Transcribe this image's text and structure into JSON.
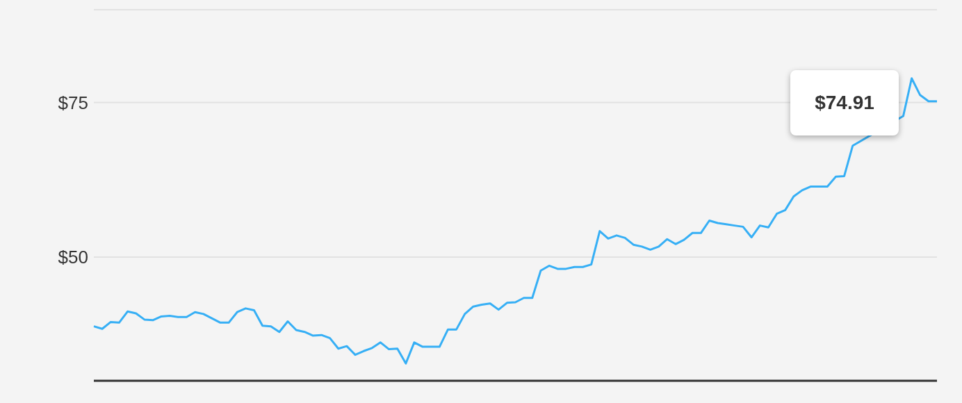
{
  "chart_data": {
    "type": "line",
    "categories": [
      null,
      null,
      null,
      null,
      null,
      null,
      null,
      null,
      null,
      null,
      null,
      null,
      null,
      null,
      null,
      null,
      null,
      null,
      null,
      null,
      null,
      null,
      null,
      null,
      null,
      null,
      null,
      null,
      null,
      null,
      null,
      null,
      null,
      null,
      null,
      null,
      null,
      null,
      null,
      null,
      null,
      null,
      null,
      null,
      null,
      null,
      null,
      null,
      null,
      null,
      null,
      null,
      null,
      null,
      null,
      null,
      null,
      null,
      null,
      null,
      null,
      null,
      null,
      null,
      null,
      null,
      null,
      null,
      null,
      null,
      null,
      null,
      null,
      null,
      null,
      null,
      null,
      null,
      null,
      null,
      null,
      null,
      null,
      null,
      null,
      null,
      null,
      null,
      null,
      null,
      null,
      null,
      null,
      null,
      null,
      null,
      null,
      null,
      null,
      null,
      null
    ],
    "values": [
      38.8,
      38.4,
      39.5,
      39.4,
      41.2,
      40.9,
      39.9,
      39.8,
      40.4,
      40.5,
      40.3,
      40.3,
      41.1,
      40.8,
      40.1,
      39.4,
      39.4,
      41.1,
      41.7,
      41.4,
      38.9,
      38.8,
      37.9,
      39.6,
      38.2,
      37.9,
      37.3,
      37.4,
      36.9,
      35.2,
      35.6,
      34.2,
      34.8,
      35.3,
      36.2,
      35.1,
      35.2,
      32.8,
      36.2,
      35.5,
      35.5,
      35.5,
      38.3,
      38.3,
      40.8,
      42.0,
      42.3,
      42.5,
      41.5,
      42.6,
      42.7,
      43.4,
      43.4,
      47.8,
      48.6,
      48.1,
      48.1,
      48.4,
      48.4,
      48.8,
      54.2,
      53.0,
      53.5,
      53.1,
      52.0,
      51.7,
      51.2,
      51.7,
      52.9,
      52.1,
      52.8,
      53.9,
      53.9,
      55.9,
      55.5,
      55.3,
      55.1,
      54.9,
      53.2,
      55.1,
      54.8,
      57.0,
      57.6,
      59.8,
      60.8,
      61.4,
      61.4,
      61.4,
      63.0,
      63.1,
      68.0,
      null,
      null,
      null,
      null,
      null,
      72.8,
      78.9,
      76.2,
      75.2,
      75.2
    ],
    "color": "#36aff5",
    "ylim": [
      30,
      90
    ],
    "yticks": [
      {
        "value": 50,
        "label": "$50"
      },
      {
        "value": 75,
        "label": "$75"
      }
    ],
    "grid": "y",
    "annotations": [
      "$74.91"
    ]
  }
}
